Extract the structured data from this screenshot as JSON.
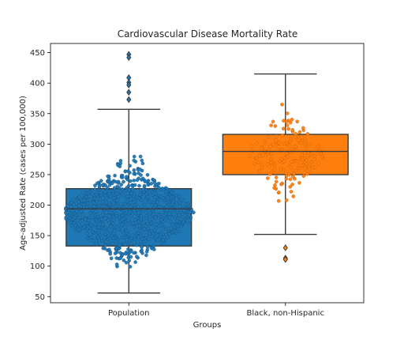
{
  "chart_data": {
    "type": "box",
    "title": "Cardiovascular Disease Mortality Rate",
    "xlabel": "Groups",
    "ylabel": "Age-adjusted Rate (cases per 100,000)",
    "categories": [
      "Population",
      "Black, non-Hispanic"
    ],
    "ylim": [
      40,
      465
    ],
    "yticks": [
      50,
      100,
      150,
      200,
      250,
      300,
      350,
      400,
      450
    ],
    "grid": false,
    "colors": {
      "Population": "#1f77b4",
      "Black, non-Hispanic": "#ff7f0e",
      "box_edge": "#3a3a3a"
    },
    "series": [
      {
        "category": "Population",
        "whisker_low": 56,
        "q1": 133,
        "median": 194,
        "q3": 227,
        "whisker_high": 357,
        "outliers": [
          447,
          442,
          409,
          401,
          397,
          385,
          373
        ]
      },
      {
        "category": "Black, non-Hispanic",
        "whisker_low": 152,
        "q1": 250,
        "median": 288,
        "q3": 316,
        "whisker_high": 415,
        "outliers": [
          130,
          113,
          111
        ]
      }
    ]
  }
}
